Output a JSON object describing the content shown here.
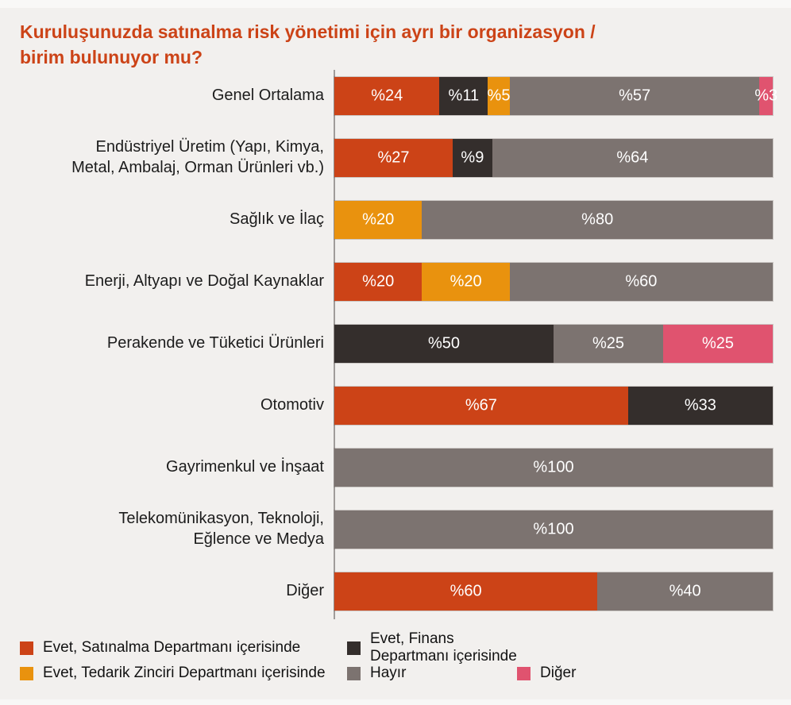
{
  "page": {
    "background": "#F2F0EE",
    "title_lines": [
      "Kuruluşunuzda satınalma risk yönetimi için ayrı bir organizasyon /",
      "birim bulunuyor mu?"
    ],
    "title_color": "#CC4317"
  },
  "series": {
    "satinalma": {
      "label": "Evet, Satınalma Departmanı içerisinde",
      "color": "#CC4317"
    },
    "finans": {
      "label": "Evet, Finans Departmanı içerisinde",
      "color": "#342E2C"
    },
    "tedarik": {
      "label": "Evet, Tedarik Zinciri Departmanı içerisinde",
      "color": "#E9920E"
    },
    "hayir": {
      "label": "Hayır",
      "color": "#7C7370"
    },
    "diger": {
      "label": "Diğer",
      "color": "#E0536F"
    }
  },
  "chart_data": {
    "type": "bar",
    "orientation": "horizontal",
    "stacked": true,
    "value_prefix": "%",
    "xlim": [
      0,
      100
    ],
    "grid": false,
    "legend_position": "bottom",
    "value_label_color": "#FFFFFF",
    "categories": [
      "Genel Ortalama",
      "Endüstriyel Üretim (Yapı, Kimya, Metal, Ambalaj, Orman Ürünleri vb.)",
      "Sağlık ve İlaç",
      "Enerji, Altyapı ve Doğal Kaynaklar",
      "Perakende ve Tüketici Ürünleri",
      "Otomotiv",
      "Gayrimenkul ve İnşaat",
      "Telekomünikasyon, Teknoloji, Eğlence ve Medya",
      "Diğer"
    ],
    "rows": [
      {
        "label": "Genel Ortalama",
        "segments": [
          {
            "series": "satinalma",
            "value": 24
          },
          {
            "series": "finans",
            "value": 11
          },
          {
            "series": "tedarik",
            "value": 5
          },
          {
            "series": "hayir",
            "value": 57
          },
          {
            "series": "diger",
            "value": 3
          }
        ]
      },
      {
        "label": "Endüstriyel Üretim (Yapı, Kimya,\nMetal, Ambalaj, Orman Ürünleri vb.)",
        "segments": [
          {
            "series": "satinalma",
            "value": 27
          },
          {
            "series": "finans",
            "value": 9
          },
          {
            "series": "hayir",
            "value": 64
          }
        ]
      },
      {
        "label": "Sağlık ve İlaç",
        "segments": [
          {
            "series": "tedarik",
            "value": 20
          },
          {
            "series": "hayir",
            "value": 80
          }
        ]
      },
      {
        "label": "Enerji, Altyapı ve Doğal Kaynaklar",
        "segments": [
          {
            "series": "satinalma",
            "value": 20
          },
          {
            "series": "tedarik",
            "value": 20
          },
          {
            "series": "hayir",
            "value": 60
          }
        ]
      },
      {
        "label": "Perakende ve Tüketici Ürünleri",
        "segments": [
          {
            "series": "finans",
            "value": 50
          },
          {
            "series": "hayir",
            "value": 25
          },
          {
            "series": "diger",
            "value": 25
          }
        ]
      },
      {
        "label": "Otomotiv",
        "segments": [
          {
            "series": "satinalma",
            "value": 67
          },
          {
            "series": "finans",
            "value": 33
          }
        ]
      },
      {
        "label": "Gayrimenkul ve İnşaat",
        "segments": [
          {
            "series": "hayir",
            "value": 100
          }
        ]
      },
      {
        "label": "Telekomünikasyon, Teknoloji,\nEğlence ve Medya",
        "segments": [
          {
            "series": "hayir",
            "value": 100
          }
        ]
      },
      {
        "label": "Diğer",
        "segments": [
          {
            "series": "satinalma",
            "value": 60
          },
          {
            "series": "hayir",
            "value": 40
          }
        ]
      }
    ]
  }
}
